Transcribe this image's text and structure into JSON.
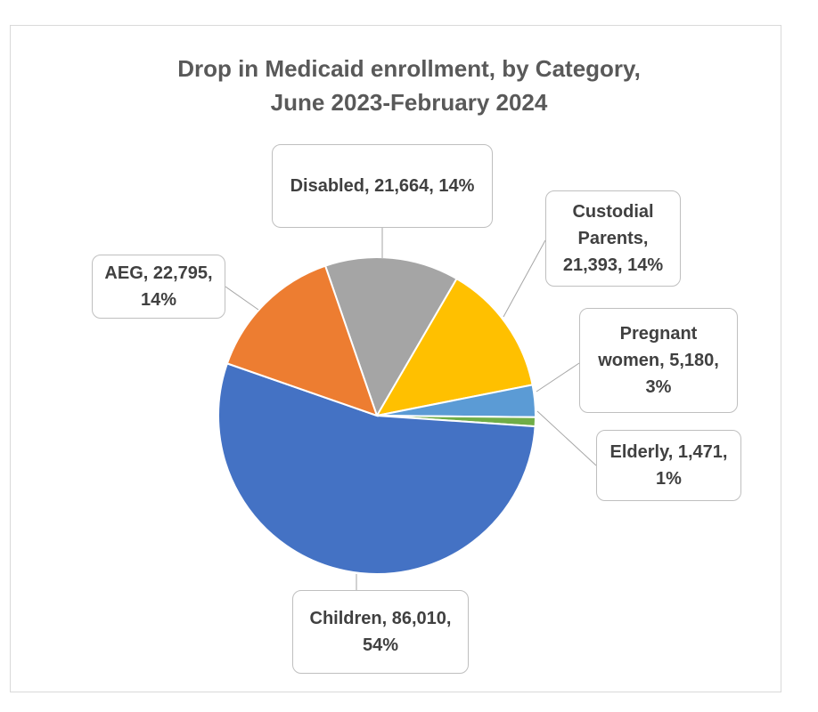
{
  "chart_data": {
    "type": "pie",
    "title_lines": [
      "Drop in Medicaid enrollment, by Category,",
      "June 2023-February 2024"
    ],
    "slices": [
      {
        "label": "Disabled, 21,664, 14%",
        "category": "Disabled",
        "value": 21664,
        "percent": 14,
        "color": "#a5a5a5"
      },
      {
        "label": "Custodial Parents, 21,393, 14%",
        "category": "Custodial Parents",
        "value": 21393,
        "percent": 14,
        "color": "#ffc000"
      },
      {
        "label": "Pregnant women, 5,180, 3%",
        "category": "Pregnant women",
        "value": 5180,
        "percent": 3,
        "color": "#5b9bd5"
      },
      {
        "label": "Elderly, 1,471, 1%",
        "category": "Elderly",
        "value": 1471,
        "percent": 1,
        "color": "#70ad47"
      },
      {
        "label": "Children, 86,010, 54%",
        "category": "Children",
        "value": 86010,
        "percent": 54,
        "color": "#4472c4"
      },
      {
        "label": "AEG, 22,795, 14%",
        "category": "AEG",
        "value": 22795,
        "percent": 14,
        "color": "#ed7d31"
      }
    ],
    "legend": "none"
  }
}
